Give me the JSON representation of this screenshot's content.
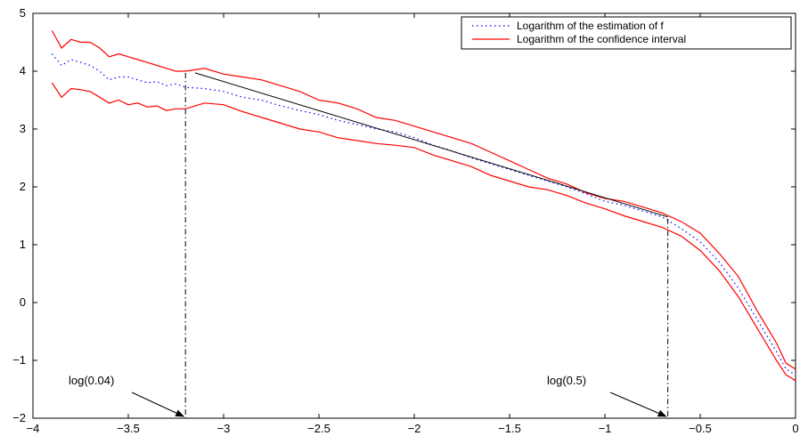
{
  "chart_data": {
    "type": "line",
    "title": "",
    "xlabel": "",
    "ylabel": "",
    "xlim": [
      -4,
      0
    ],
    "ylim": [
      -2,
      5
    ],
    "grid": false,
    "legend_position": "top-right",
    "xticks": [
      -4,
      -3.5,
      -3,
      -2.5,
      -2,
      -1.5,
      -1,
      -0.5,
      0
    ],
    "xtick_labels": [
      "−4",
      "−3.5",
      "−3",
      "−2.5",
      "−2",
      "−1.5",
      "−1",
      "−0.5",
      "0"
    ],
    "yticks": [
      -2,
      -1,
      0,
      1,
      2,
      3,
      4,
      5
    ],
    "ytick_labels": [
      "−2",
      "−1",
      "0",
      "1",
      "2",
      "3",
      "4",
      "5"
    ],
    "colors": {
      "estimate": "#0000ff",
      "interval": "#ff0000",
      "fit": "#000000",
      "markers": "#000000"
    },
    "series": [
      {
        "name": "Logarithm of the estimation of f",
        "style": "dotted",
        "x": [
          -3.9,
          -3.85,
          -3.8,
          -3.75,
          -3.7,
          -3.65,
          -3.6,
          -3.55,
          -3.5,
          -3.45,
          -3.4,
          -3.35,
          -3.3,
          -3.25,
          -3.2,
          -3.1,
          -3.0,
          -2.9,
          -2.8,
          -2.7,
          -2.6,
          -2.5,
          -2.4,
          -2.3,
          -2.2,
          -2.1,
          -2.0,
          -1.9,
          -1.8,
          -1.7,
          -1.6,
          -1.5,
          -1.4,
          -1.3,
          -1.2,
          -1.1,
          -1.0,
          -0.9,
          -0.8,
          -0.7,
          -0.6,
          -0.5,
          -0.4,
          -0.3,
          -0.2,
          -0.1,
          -0.05,
          0.0
        ],
        "y": [
          4.3,
          4.1,
          4.2,
          4.15,
          4.1,
          4.0,
          3.85,
          3.9,
          3.9,
          3.85,
          3.8,
          3.82,
          3.75,
          3.78,
          3.72,
          3.7,
          3.65,
          3.55,
          3.5,
          3.4,
          3.32,
          3.25,
          3.15,
          3.08,
          3.0,
          2.95,
          2.85,
          2.72,
          2.62,
          2.5,
          2.4,
          2.3,
          2.2,
          2.1,
          2.0,
          1.88,
          1.75,
          1.68,
          1.58,
          1.48,
          1.28,
          1.05,
          0.7,
          0.25,
          -0.3,
          -0.85,
          -1.15,
          -1.25
        ]
      },
      {
        "name": "Logarithm of the confidence interval",
        "style": "solid",
        "x": [
          -3.9,
          -3.85,
          -3.8,
          -3.75,
          -3.7,
          -3.65,
          -3.6,
          -3.55,
          -3.5,
          -3.45,
          -3.4,
          -3.35,
          -3.3,
          -3.25,
          -3.2,
          -3.1,
          -3.0,
          -2.9,
          -2.8,
          -2.7,
          -2.6,
          -2.5,
          -2.4,
          -2.3,
          -2.2,
          -2.1,
          -2.0,
          -1.9,
          -1.8,
          -1.7,
          -1.6,
          -1.5,
          -1.4,
          -1.3,
          -1.2,
          -1.1,
          -1.0,
          -0.9,
          -0.8,
          -0.7,
          -0.6,
          -0.5,
          -0.4,
          -0.3,
          -0.2,
          -0.1,
          -0.05,
          0.0
        ],
        "y": [
          4.7,
          4.4,
          4.55,
          4.5,
          4.5,
          4.4,
          4.25,
          4.3,
          4.25,
          4.2,
          4.15,
          4.1,
          4.05,
          4.0,
          4.0,
          4.05,
          3.95,
          3.9,
          3.85,
          3.75,
          3.65,
          3.5,
          3.45,
          3.35,
          3.2,
          3.15,
          3.05,
          2.95,
          2.85,
          2.75,
          2.6,
          2.45,
          2.3,
          2.15,
          2.05,
          1.9,
          1.8,
          1.75,
          1.65,
          1.55,
          1.4,
          1.2,
          0.85,
          0.45,
          -0.15,
          -0.7,
          -1.05,
          -1.15
        ]
      },
      {
        "name": "",
        "style": "solid",
        "x": [
          -3.9,
          -3.85,
          -3.8,
          -3.75,
          -3.7,
          -3.65,
          -3.6,
          -3.55,
          -3.5,
          -3.45,
          -3.4,
          -3.35,
          -3.3,
          -3.25,
          -3.2,
          -3.1,
          -3.0,
          -2.9,
          -2.8,
          -2.7,
          -2.6,
          -2.5,
          -2.4,
          -2.3,
          -2.2,
          -2.1,
          -2.0,
          -1.9,
          -1.8,
          -1.7,
          -1.6,
          -1.5,
          -1.4,
          -1.3,
          -1.2,
          -1.1,
          -1.0,
          -0.9,
          -0.8,
          -0.7,
          -0.6,
          -0.5,
          -0.4,
          -0.3,
          -0.2,
          -0.1,
          -0.05,
          0.0
        ],
        "y": [
          3.8,
          3.55,
          3.7,
          3.68,
          3.65,
          3.55,
          3.45,
          3.5,
          3.42,
          3.45,
          3.38,
          3.4,
          3.32,
          3.35,
          3.35,
          3.45,
          3.42,
          3.3,
          3.2,
          3.1,
          3.0,
          2.95,
          2.85,
          2.8,
          2.75,
          2.72,
          2.68,
          2.55,
          2.45,
          2.35,
          2.2,
          2.1,
          2.0,
          1.95,
          1.85,
          1.72,
          1.62,
          1.5,
          1.4,
          1.3,
          1.15,
          0.9,
          0.55,
          0.1,
          -0.45,
          -1.0,
          -1.25,
          -1.35
        ]
      },
      {
        "name": "",
        "style": "solid",
        "x": [
          -3.15,
          -0.67
        ],
        "y": [
          3.97,
          1.48
        ]
      }
    ],
    "vertical_markers": [
      {
        "x": -3.2,
        "label": "log(0.04)",
        "y_top": 3.97
      },
      {
        "x": -0.67,
        "label": "log(0.5)",
        "y_top": 1.45
      }
    ]
  }
}
